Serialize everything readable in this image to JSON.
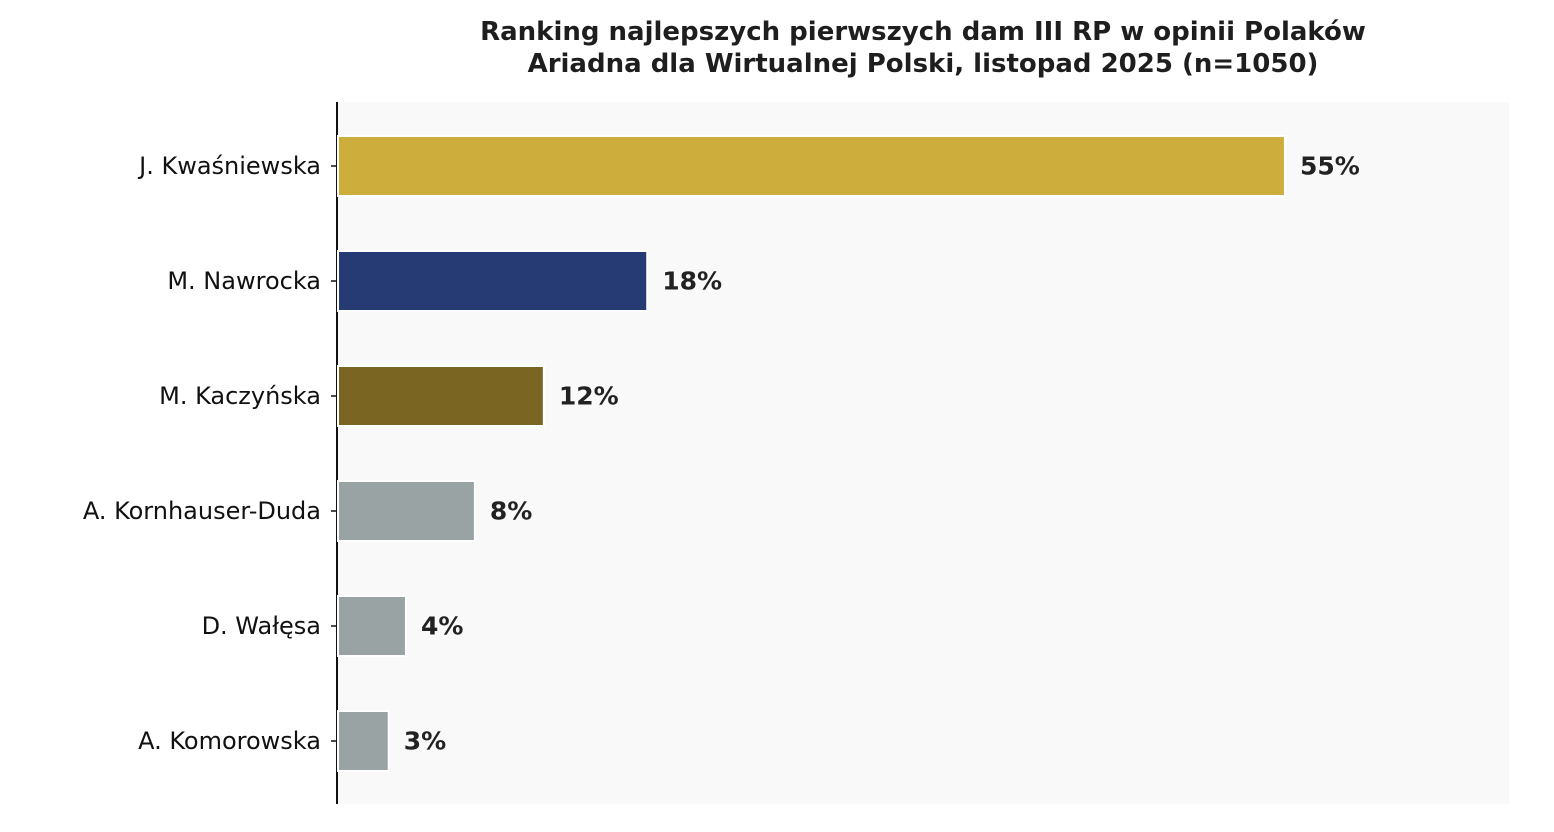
{
  "chart_data": {
    "type": "bar",
    "orientation": "horizontal",
    "title": "Ranking najlepszych pierwszych dam III RP w opinii Polaków",
    "subtitle": "Ariadna dla Wirtualnej Polski, listopad 2025 (n=1050)",
    "xlabel": "",
    "ylabel": "",
    "categories": [
      "J. Kwaśniewska",
      "M. Nawrocka",
      "M. Kaczyńska",
      "A. Kornhauser-Duda",
      "D. Wałęsa",
      "A. Komorowska"
    ],
    "values": [
      55,
      18,
      12,
      8,
      4,
      3
    ],
    "value_labels": [
      "55%",
      "18%",
      "12%",
      "8%",
      "4%",
      "3%"
    ],
    "colors": [
      "#CDAD3C",
      "#263B73",
      "#7A6522",
      "#9AA3A4",
      "#9AA3A4",
      "#9AA3A4"
    ],
    "xlim": [
      0,
      68
    ],
    "grid": false,
    "legend": "none",
    "plot_background": "#F9F9F9"
  }
}
